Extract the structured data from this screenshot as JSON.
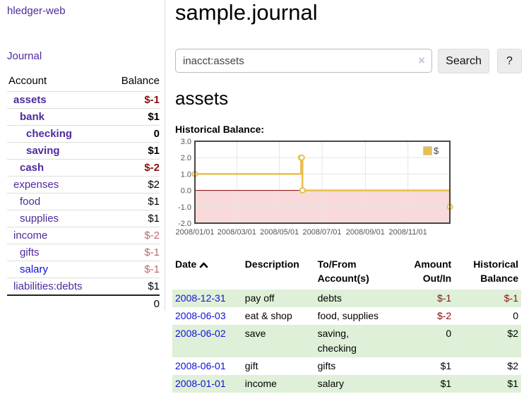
{
  "app": {
    "brand": "hledger-web"
  },
  "sidebar": {
    "nav": {
      "journal_label": "Journal"
    },
    "accounts_table": {
      "headers": {
        "account": "Account",
        "balance": "Balance"
      },
      "rows": [
        {
          "name": "assets",
          "depth": 1,
          "bold": true,
          "balance": "$-1"
        },
        {
          "name": "bank",
          "depth": 2,
          "bold": true,
          "balance": "$1"
        },
        {
          "name": "checking",
          "depth": 3,
          "bold": true,
          "balance": "0"
        },
        {
          "name": "saving",
          "depth": 3,
          "bold": true,
          "balance": "$1"
        },
        {
          "name": "cash",
          "depth": 2,
          "bold": true,
          "balance": "$-2"
        },
        {
          "name": "expenses",
          "depth": 1,
          "bold": false,
          "balance": "$2"
        },
        {
          "name": "food",
          "depth": 2,
          "bold": false,
          "balance": "$1"
        },
        {
          "name": "supplies",
          "depth": 2,
          "bold": false,
          "balance": "$1"
        },
        {
          "name": "income",
          "depth": 1,
          "bold": false,
          "balance": "$-2"
        },
        {
          "name": "gifts",
          "depth": 2,
          "bold": false,
          "balance": "$-1"
        },
        {
          "name": "salary",
          "depth": 2,
          "bold": false,
          "balance": "$-1",
          "link_style": "blue"
        },
        {
          "name": "liabilities:debts",
          "depth": 1,
          "bold": false,
          "balance": "$1"
        }
      ],
      "total": "0"
    }
  },
  "main": {
    "title": "sample.journal",
    "search": {
      "value": "inacct:assets",
      "clear_label": "×",
      "button_label": "Search",
      "help_label": "?"
    },
    "account_heading": "assets",
    "register": {
      "headers": [
        "Date",
        "Description",
        "To/From Account(s)",
        "Amount Out/In",
        "Historical Balance"
      ],
      "rows": [
        {
          "date": "2008-12-31",
          "description": "pay off",
          "accounts": "debts",
          "amount": "$-1",
          "balance": "$-1"
        },
        {
          "date": "2008-06-03",
          "description": "eat & shop",
          "accounts": "food, supplies",
          "amount": "$-2",
          "balance": "0"
        },
        {
          "date": "2008-06-02",
          "description": "save",
          "accounts": "saving, checking",
          "amount": "0",
          "balance": "$2"
        },
        {
          "date": "2008-06-01",
          "description": "gift",
          "accounts": "gifts",
          "amount": "$1",
          "balance": "$2"
        },
        {
          "date": "2008-01-01",
          "description": "income",
          "accounts": "salary",
          "amount": "$1",
          "balance": "$1"
        }
      ]
    }
  },
  "chart_data": {
    "type": "line",
    "title": "Historical Balance:",
    "series": [
      {
        "name": "$",
        "color": "#E8BF4D",
        "step": true,
        "points": [
          [
            "2008-01-01",
            1
          ],
          [
            "2008-06-01",
            2
          ],
          [
            "2008-06-02",
            2
          ],
          [
            "2008-06-03",
            0
          ],
          [
            "2008-12-31",
            -1
          ]
        ]
      }
    ],
    "xlim": [
      "2008-01-01",
      "2008-12-31"
    ],
    "ylim": [
      -2,
      3
    ],
    "x_ticks": [
      {
        "label": "2008/01/01",
        "date": "2008-01-01"
      },
      {
        "label": "2008/03/01",
        "date": "2008-03-01"
      },
      {
        "label": "2008/05/01",
        "date": "2008-05-01"
      },
      {
        "label": "2008/07/01",
        "date": "2008-07-01"
      },
      {
        "label": "2008/09/01",
        "date": "2008-09-01"
      },
      {
        "label": "2008/11/01",
        "date": "2008-11-01"
      }
    ],
    "y_ticks": [
      "3.0",
      "2.0",
      "1.0",
      "0.0",
      "-1.0",
      "-2.0"
    ],
    "grid": true,
    "grid_color": "#e6e6e6",
    "negative_fill": "#f9dada",
    "zero_line_color": "#8b0000",
    "legend": {
      "position": "top-right",
      "label": "$",
      "swatch_color": "#E8BF4D"
    }
  }
}
